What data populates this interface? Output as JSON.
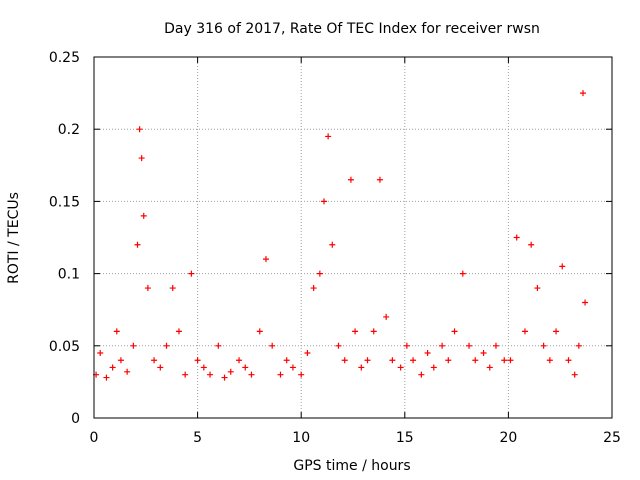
{
  "chart_data": {
    "type": "scatter",
    "title": "Day 316 of 2017, Rate Of TEC Index for receiver rwsn",
    "xlabel": "GPS time / hours",
    "ylabel": "ROTI / TECUs",
    "xlim": [
      0,
      25
    ],
    "ylim": [
      0,
      0.25
    ],
    "x_ticks": [
      0,
      5,
      10,
      15,
      20,
      25
    ],
    "x_tick_labels": [
      "0",
      "5",
      "10",
      "15",
      "20",
      "25"
    ],
    "y_ticks": [
      0,
      0.05,
      0.1,
      0.15,
      0.2,
      0.25
    ],
    "y_tick_labels": [
      "0",
      "0.05",
      "0.1",
      "0.15",
      "0.2",
      "0.25"
    ],
    "grid": true,
    "marker": "plus",
    "series": [
      {
        "name": "ROTI",
        "color": "#ff0000",
        "x": [
          0.1,
          0.3,
          0.6,
          0.9,
          1.1,
          1.3,
          1.6,
          1.9,
          2.1,
          2.2,
          2.3,
          2.4,
          2.6,
          2.9,
          3.2,
          3.5,
          3.8,
          4.1,
          4.4,
          4.7,
          5.0,
          5.3,
          5.6,
          6.0,
          6.3,
          6.6,
          7.0,
          7.3,
          7.6,
          8.0,
          8.3,
          8.6,
          9.0,
          9.3,
          9.6,
          10.0,
          10.3,
          10.6,
          10.9,
          11.1,
          11.3,
          11.5,
          11.8,
          12.1,
          12.4,
          12.6,
          12.9,
          13.2,
          13.5,
          13.8,
          14.1,
          14.4,
          14.8,
          15.1,
          15.4,
          15.8,
          16.1,
          16.4,
          16.8,
          17.1,
          17.4,
          17.8,
          18.1,
          18.4,
          18.8,
          19.1,
          19.4,
          19.8,
          20.1,
          20.4,
          20.8,
          21.1,
          21.4,
          21.7,
          22.0,
          22.3,
          22.6,
          22.9,
          23.2,
          23.4,
          23.6,
          23.7
        ],
        "y": [
          0.03,
          0.045,
          0.028,
          0.035,
          0.06,
          0.04,
          0.032,
          0.05,
          0.12,
          0.2,
          0.18,
          0.14,
          0.09,
          0.04,
          0.035,
          0.05,
          0.09,
          0.06,
          0.03,
          0.1,
          0.04,
          0.035,
          0.03,
          0.05,
          0.028,
          0.032,
          0.04,
          0.035,
          0.03,
          0.06,
          0.11,
          0.05,
          0.03,
          0.04,
          0.035,
          0.03,
          0.045,
          0.09,
          0.1,
          0.15,
          0.195,
          0.12,
          0.05,
          0.04,
          0.165,
          0.06,
          0.035,
          0.04,
          0.06,
          0.165,
          0.07,
          0.04,
          0.035,
          0.05,
          0.04,
          0.03,
          0.045,
          0.035,
          0.05,
          0.04,
          0.06,
          0.1,
          0.05,
          0.04,
          0.045,
          0.035,
          0.05,
          0.04,
          0.04,
          0.125,
          0.06,
          0.12,
          0.09,
          0.05,
          0.04,
          0.06,
          0.105,
          0.04,
          0.03,
          0.05,
          0.225,
          0.08
        ]
      }
    ]
  }
}
